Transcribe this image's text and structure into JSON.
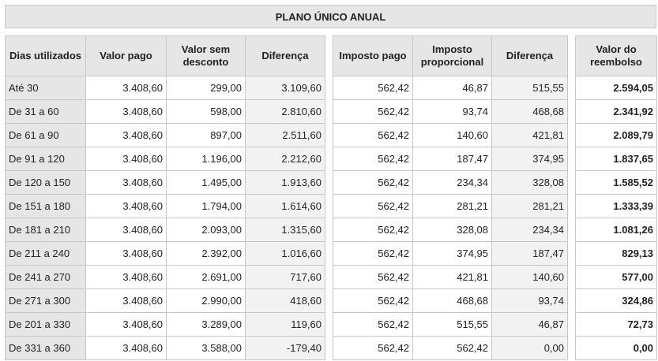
{
  "title": "PLANO ÚNICO ANUAL",
  "table1": {
    "headers": [
      "Dias utilizados",
      "Valor pago",
      "Valor sem desconto",
      "Diferença"
    ],
    "rows": [
      [
        "Até 30",
        "3.408,60",
        "299,00",
        "3.109,60"
      ],
      [
        "De 31 a 60",
        "3.408,60",
        "598,00",
        "2.810,60"
      ],
      [
        "De 61 a 90",
        "3.408,60",
        "897,00",
        "2.511,60"
      ],
      [
        "De 91 a 120",
        "3.408,60",
        "1.196,00",
        "2.212,60"
      ],
      [
        "De 120 a 150",
        "3.408,60",
        "1.495,00",
        "1.913,60"
      ],
      [
        "De 151 a 180",
        "3.408,60",
        "1.794,00",
        "1.614,60"
      ],
      [
        "De 181 a 210",
        "3.408,60",
        "2.093,00",
        "1.315,60"
      ],
      [
        "De 211 a 240",
        "3.408,60",
        "2.392,00",
        "1.016,60"
      ],
      [
        "De 241 a 270",
        "3.408,60",
        "2.691,00",
        "717,60"
      ],
      [
        "De 271 a 300",
        "3.408,60",
        "2.990,00",
        "418,60"
      ],
      [
        "De 201 a 330",
        "3.408,60",
        "3.289,00",
        "119,60"
      ],
      [
        "De 331 a 360",
        "3.408,60",
        "3.588,00",
        "-179,40"
      ]
    ]
  },
  "table2": {
    "headers": [
      "Imposto pago",
      "Imposto proporcional",
      "Diferença"
    ],
    "rows": [
      [
        "562,42",
        "46,87",
        "515,55"
      ],
      [
        "562,42",
        "93,74",
        "468,68"
      ],
      [
        "562,42",
        "140,60",
        "421,81"
      ],
      [
        "562,42",
        "187,47",
        "374,95"
      ],
      [
        "562,42",
        "234,34",
        "328,08"
      ],
      [
        "562,42",
        "281,21",
        "281,21"
      ],
      [
        "562,42",
        "328,08",
        "234,34"
      ],
      [
        "562,42",
        "374,95",
        "187,47"
      ],
      [
        "562,42",
        "421,81",
        "140,60"
      ],
      [
        "562,42",
        "468,68",
        "93,74"
      ],
      [
        "562,42",
        "515,55",
        "46,87"
      ],
      [
        "562,42",
        "562,42",
        "0,00"
      ]
    ]
  },
  "table3": {
    "headers": [
      "Valor do reembolso"
    ],
    "rows": [
      [
        "2.594,05"
      ],
      [
        "2.341,92"
      ],
      [
        "2.089,79"
      ],
      [
        "1.837,65"
      ],
      [
        "1.585,52"
      ],
      [
        "1.333,39"
      ],
      [
        "1.081,26"
      ],
      [
        "829,13"
      ],
      [
        "577,00"
      ],
      [
        "324,86"
      ],
      [
        "72,73"
      ],
      [
        "0,00"
      ]
    ]
  }
}
